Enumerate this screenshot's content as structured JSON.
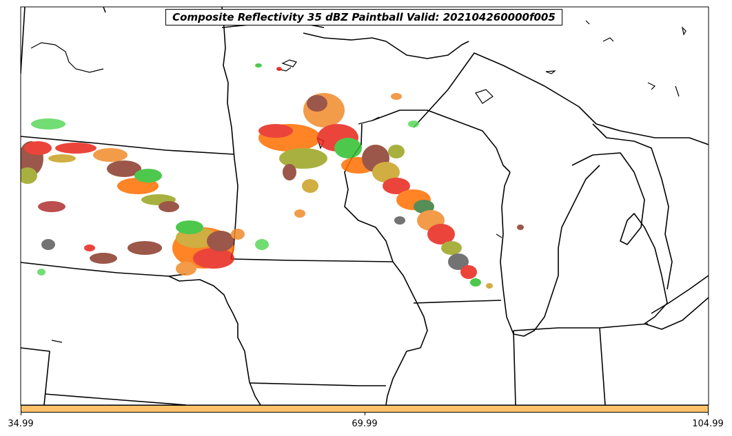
{
  "map": {
    "title": "Composite Reflectivity 35 dBZ Paintball Valid: 202104260000f005",
    "colorbar_color": "#ffc26b",
    "colorbar_ticks": [
      "34.99",
      "69.99",
      "104.99"
    ],
    "echo_colors": [
      "#e8241a",
      "#ff6f00",
      "#f08a2a",
      "#c8a020",
      "#9aa41e",
      "#2fbf2f",
      "#5ad85a",
      "#3a7a3a",
      "#5b5b5b",
      "#8a3a2a",
      "#b03030"
    ]
  }
}
